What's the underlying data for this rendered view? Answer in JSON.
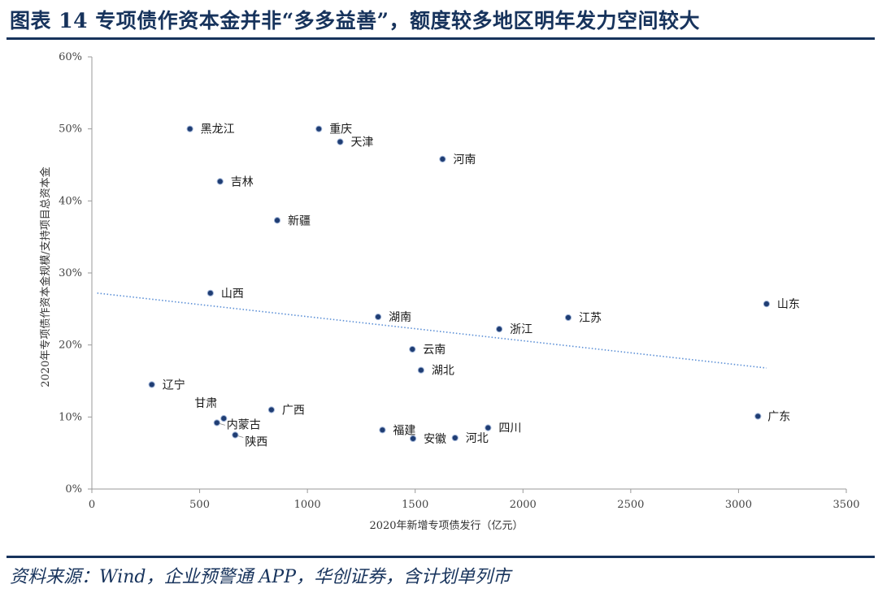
{
  "header": {
    "title": "图表 14   专项债作资本金并非“多多益善”，额度较多地区明年发力空间较大"
  },
  "footer": {
    "source": "资料来源：Wind，企业预警通 APP，华创证券，含计划单列市"
  },
  "colors": {
    "accent": "#17335c",
    "marker": "#1f3d73",
    "trendline": "#5b8fd6"
  },
  "chart_data": {
    "type": "scatter",
    "title": "",
    "xlabel": "2020年新增专项债发行（亿元）",
    "ylabel": "2020年专项债作资本金规模/支持项目总资本金",
    "xlim": [
      0,
      3500
    ],
    "ylim": [
      0,
      60
    ],
    "xticks": [
      0,
      500,
      1000,
      1500,
      2000,
      2500,
      3000,
      3500
    ],
    "yticks": [
      0,
      10,
      20,
      30,
      40,
      50,
      60
    ],
    "ytick_labels": [
      "0%",
      "10%",
      "20%",
      "30%",
      "40%",
      "50%",
      "60%"
    ],
    "grid": false,
    "legend": "none",
    "points": [
      {
        "label": "黑龙江",
        "x": 455,
        "y": 50.0
      },
      {
        "label": "重庆",
        "x": 1053,
        "y": 50.0
      },
      {
        "label": "天津",
        "x": 1152,
        "y": 48.2
      },
      {
        "label": "河南",
        "x": 1627,
        "y": 45.8
      },
      {
        "label": "吉林",
        "x": 595,
        "y": 42.7
      },
      {
        "label": "新疆",
        "x": 860,
        "y": 37.3
      },
      {
        "label": "山西",
        "x": 550,
        "y": 27.2
      },
      {
        "label": "山东",
        "x": 3130,
        "y": 25.7
      },
      {
        "label": "湖南",
        "x": 1328,
        "y": 23.9
      },
      {
        "label": "江苏",
        "x": 2210,
        "y": 23.8
      },
      {
        "label": "浙江",
        "x": 1890,
        "y": 22.2
      },
      {
        "label": "云南",
        "x": 1487,
        "y": 19.4
      },
      {
        "label": "湖北",
        "x": 1527,
        "y": 16.5
      },
      {
        "label": "辽宁",
        "x": 278,
        "y": 14.5
      },
      {
        "label": "广西",
        "x": 833,
        "y": 11.0
      },
      {
        "label": "广东",
        "x": 3090,
        "y": 10.1
      },
      {
        "label": "甘肃",
        "x": 612,
        "y": 9.8
      },
      {
        "label": "内蒙古",
        "x": 580,
        "y": 9.2
      },
      {
        "label": "四川",
        "x": 1838,
        "y": 8.5
      },
      {
        "label": "福建",
        "x": 1348,
        "y": 8.2
      },
      {
        "label": "陕西",
        "x": 665,
        "y": 7.5
      },
      {
        "label": "河北",
        "x": 1685,
        "y": 7.1
      },
      {
        "label": "安徽",
        "x": 1490,
        "y": 7.0
      }
    ],
    "trendline": {
      "from": [
        25,
        27.2
      ],
      "to": [
        3130,
        16.8
      ]
    }
  }
}
